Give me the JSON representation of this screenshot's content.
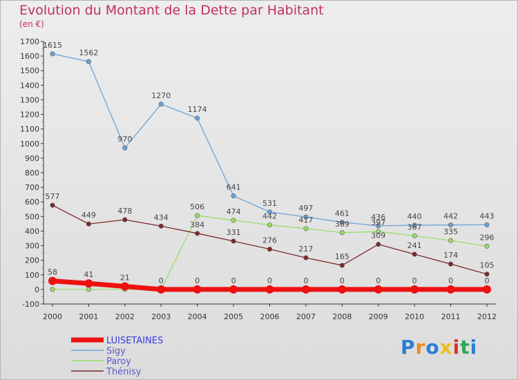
{
  "header": {
    "title": "Evolution du Montant de la Dette par Habitant",
    "subtitle": "(en €)"
  },
  "logo": {
    "text": "Proxiti",
    "colors": [
      "#2a7fd4",
      "#f08a1c",
      "#2a7fd4",
      "#e8c21a",
      "#d9331f",
      "#2ca85a",
      "#2a7fd4"
    ]
  },
  "chart_data": {
    "type": "line",
    "x": [
      "2000",
      "2001",
      "2002",
      "2003",
      "2004",
      "2005",
      "2006",
      "2007",
      "2008",
      "2009",
      "2010",
      "2011",
      "2012"
    ],
    "ylim": [
      -100,
      1700
    ],
    "yticks": [
      -100,
      0,
      100,
      200,
      300,
      400,
      500,
      600,
      700,
      800,
      900,
      1000,
      1100,
      1200,
      1300,
      1400,
      1500,
      1600,
      1700
    ],
    "grid": false,
    "legend": "bottom-left",
    "series": [
      {
        "name": "LUISETAINES",
        "color": "#ee1111",
        "values": [
          58,
          41,
          21,
          0,
          0,
          0,
          0,
          0,
          0,
          0,
          0,
          0,
          0
        ],
        "labels": [
          "58",
          "41",
          "21",
          "0",
          "0",
          "0",
          "0",
          "0",
          "0",
          "0",
          "0",
          "0",
          "0"
        ]
      },
      {
        "name": "Sigy",
        "color": "#6aa3d8",
        "values": [
          1615,
          1562,
          970,
          1270,
          1174,
          641,
          531,
          497,
          461,
          436,
          440,
          442,
          443
        ],
        "labels": [
          "1615",
          "1562",
          "970",
          "1270",
          "1174",
          "641",
          "531",
          "497",
          "461",
          "436",
          "440",
          "442",
          "443"
        ]
      },
      {
        "name": "Paroy",
        "color": "#99dd66",
        "values": [
          0,
          0,
          0,
          0,
          506,
          474,
          442,
          417,
          389,
          397,
          367,
          335,
          296
        ],
        "labels": [
          "",
          "",
          "",
          "",
          "506",
          "474",
          "442",
          "417",
          "389",
          "397",
          "367",
          "335",
          "296"
        ]
      },
      {
        "name": "Thénisy",
        "color": "#7a2a2a",
        "values": [
          577,
          449,
          478,
          434,
          384,
          331,
          276,
          217,
          165,
          309,
          241,
          174,
          105
        ],
        "labels": [
          "577",
          "449",
          "478",
          "434",
          "384",
          "331",
          "276",
          "217",
          "165",
          "309",
          "241",
          "174",
          "105"
        ]
      }
    ]
  }
}
